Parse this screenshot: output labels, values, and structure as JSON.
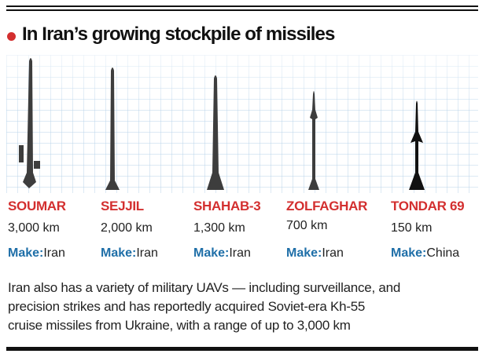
{
  "header": {
    "title": "In Iran’s growing stockpile of missiles"
  },
  "make_label": "Make:",
  "missiles": [
    {
      "name": "SOUMAR",
      "range": "3,000 km",
      "make": "Iran"
    },
    {
      "name": "SEJJIL",
      "range": "2,000 km",
      "make": "Iran"
    },
    {
      "name": "SHAHAB-3",
      "range": "1,300 km",
      "make": "Iran"
    },
    {
      "name": "ZOLFAGHAR",
      "range": "700 km",
      "make": "Iran"
    },
    {
      "name": "TONDAR 69",
      "range": "150 km",
      "make": "China"
    }
  ],
  "footnote": [
    "Iran also has a variety of military UAVs — including surveillance, and",
    "precision strikes and has reportedly acquired Soviet-era Kh-55",
    "cruise missiles from Ukraine, with a range of up to 3,000 km"
  ]
}
